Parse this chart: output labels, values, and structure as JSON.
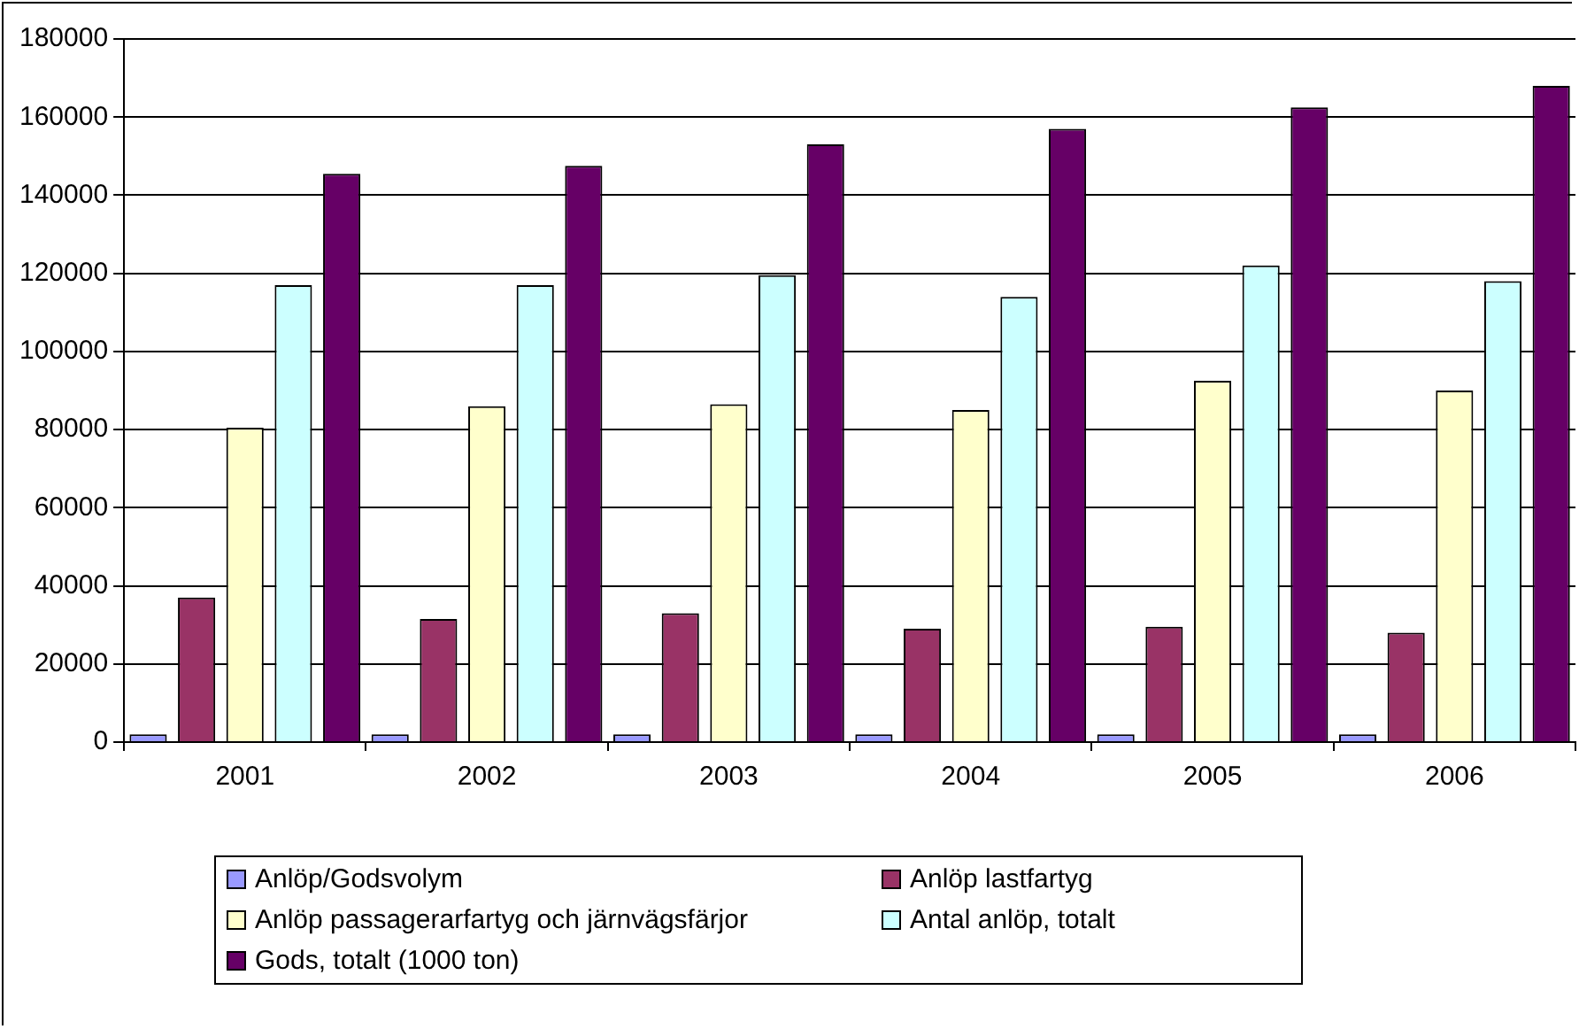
{
  "chart_data": {
    "type": "bar",
    "categories": [
      "2001",
      "2002",
      "2003",
      "2004",
      "2005",
      "2006"
    ],
    "series": [
      {
        "name": "Anlöp/Godsvolym",
        "color": "#9999ff",
        "values": [
          2000,
          2000,
          2000,
          2000,
          2000,
          2000
        ]
      },
      {
        "name": "Anlöp lastfartyg",
        "color": "#993366",
        "values": [
          37000,
          31500,
          33000,
          29000,
          29500,
          28000
        ]
      },
      {
        "name": "Anlöp passagerarfartyg och järnvägsfärjor",
        "color": "#ffffcc",
        "values": [
          80500,
          86000,
          86500,
          85000,
          92500,
          90000
        ]
      },
      {
        "name": "Antal anlöp, totalt",
        "color": "#ccffff",
        "values": [
          117000,
          117000,
          119500,
          114000,
          122000,
          118000
        ]
      },
      {
        "name": "Gods, totalt (1000 ton)",
        "color": "#660066",
        "values": [
          145500,
          147500,
          153000,
          157000,
          162500,
          168000
        ]
      }
    ],
    "ylim": [
      0,
      180000
    ],
    "yticks": [
      0,
      20000,
      40000,
      60000,
      80000,
      100000,
      120000,
      140000,
      160000,
      180000
    ],
    "grid": "y",
    "legend": "bottom"
  }
}
